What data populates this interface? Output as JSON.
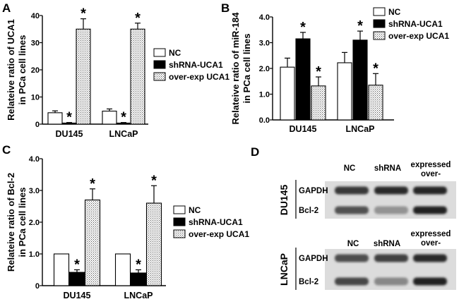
{
  "panels": [
    {
      "letter": "A",
      "chart_data": {
        "type": "bar",
        "categories": [
          "DU145",
          "LNCaP"
        ],
        "series": [
          {
            "name": "NC",
            "values": [
              4.2,
              4.8
            ],
            "errors": [
              0.7,
              0.8
            ],
            "pattern": "white"
          },
          {
            "name": "shRNA-UCA1",
            "values": [
              0.4,
              0.4
            ],
            "errors": [
              0.2,
              0.2
            ],
            "pattern": "black"
          },
          {
            "name": "over-exp UCA1",
            "values": [
              35,
              35
            ],
            "errors": [
              3.8,
              2.2
            ],
            "pattern": "dotted"
          }
        ],
        "significance": [
          [
            false,
            false
          ],
          [
            true,
            true
          ],
          [
            true,
            true
          ]
        ],
        "significance_mark": "*",
        "ylabel": [
          "Relateive ratio of UCA1",
          "in PCa cell lines"
        ],
        "ylim": [
          0,
          40
        ],
        "yticks": [
          "0",
          "10",
          "20",
          "30",
          "40"
        ],
        "legend": "right"
      }
    },
    {
      "letter": "B",
      "chart_data": {
        "type": "bar",
        "categories": [
          "DU145",
          "LNCaP"
        ],
        "series": [
          {
            "name": "NC",
            "values": [
              2.05,
              2.22
            ],
            "errors": [
              0.35,
              0.4
            ],
            "pattern": "white"
          },
          {
            "name": "shRNA-UCA1",
            "values": [
              3.15,
              3.1
            ],
            "errors": [
              0.25,
              0.35
            ],
            "pattern": "black"
          },
          {
            "name": "over-exp UCA1",
            "values": [
              1.32,
              1.35
            ],
            "errors": [
              0.35,
              0.45
            ],
            "pattern": "dotted"
          }
        ],
        "significance": [
          [
            false,
            false
          ],
          [
            true,
            true
          ],
          [
            true,
            true
          ]
        ],
        "significance_mark": "*",
        "ylabel": [
          "Relateive ratio of miR-184",
          "in PCa cell lines"
        ],
        "ylim": [
          0,
          4
        ],
        "yticks": [
          "0.0",
          "1.0",
          "2.0",
          "3.0",
          "4.0"
        ],
        "legend": "top-right"
      }
    },
    {
      "letter": "C",
      "chart_data": {
        "type": "bar",
        "categories": [
          "DU145",
          "LNCaP"
        ],
        "series": [
          {
            "name": "NC",
            "values": [
              1.0,
              1.0
            ],
            "errors": [
              0,
              0
            ],
            "pattern": "white"
          },
          {
            "name": "shRNA-UCA1",
            "values": [
              0.42,
              0.4
            ],
            "errors": [
              0.08,
              0.1
            ],
            "pattern": "black"
          },
          {
            "name": "over-exp UCA1",
            "values": [
              2.7,
              2.6
            ],
            "errors": [
              0.35,
              0.55
            ],
            "pattern": "dotted"
          }
        ],
        "significance": [
          [
            false,
            false
          ],
          [
            true,
            true
          ],
          [
            true,
            true
          ]
        ],
        "significance_mark": "*",
        "ylabel": [
          "Relateive ratio of Bcl-2",
          "in PCa cell lines"
        ],
        "ylim": [
          0,
          4
        ],
        "yticks": [
          "0",
          "1.0",
          "2.0",
          "3.0",
          "4.0"
        ],
        "legend": "right"
      }
    }
  ],
  "blot": {
    "letter": "D",
    "groups": [
      {
        "cell_line": "DU145",
        "columns": [
          "NC",
          "shRNA",
          "expressed\nover-"
        ],
        "rows": [
          {
            "label": "GAPDH",
            "intensities": [
              0.82,
              0.88,
              0.9
            ]
          },
          {
            "label": "Bcl-2",
            "intensities": [
              0.7,
              0.4,
              0.92
            ]
          }
        ]
      },
      {
        "cell_line": "LNCaP",
        "columns": [
          "NC",
          "shRNA",
          "expressed\nover-"
        ],
        "rows": [
          {
            "label": "GAPDH",
            "intensities": [
              0.72,
              0.78,
              0.88
            ]
          },
          {
            "label": "Bcl-2",
            "intensities": [
              0.75,
              0.45,
              0.92
            ]
          }
        ]
      }
    ]
  },
  "colors": {
    "ink": "#000000",
    "paper": "#ffffff",
    "blot_bg": "#d9d9d9",
    "blot_band": "#1a1a1a"
  }
}
